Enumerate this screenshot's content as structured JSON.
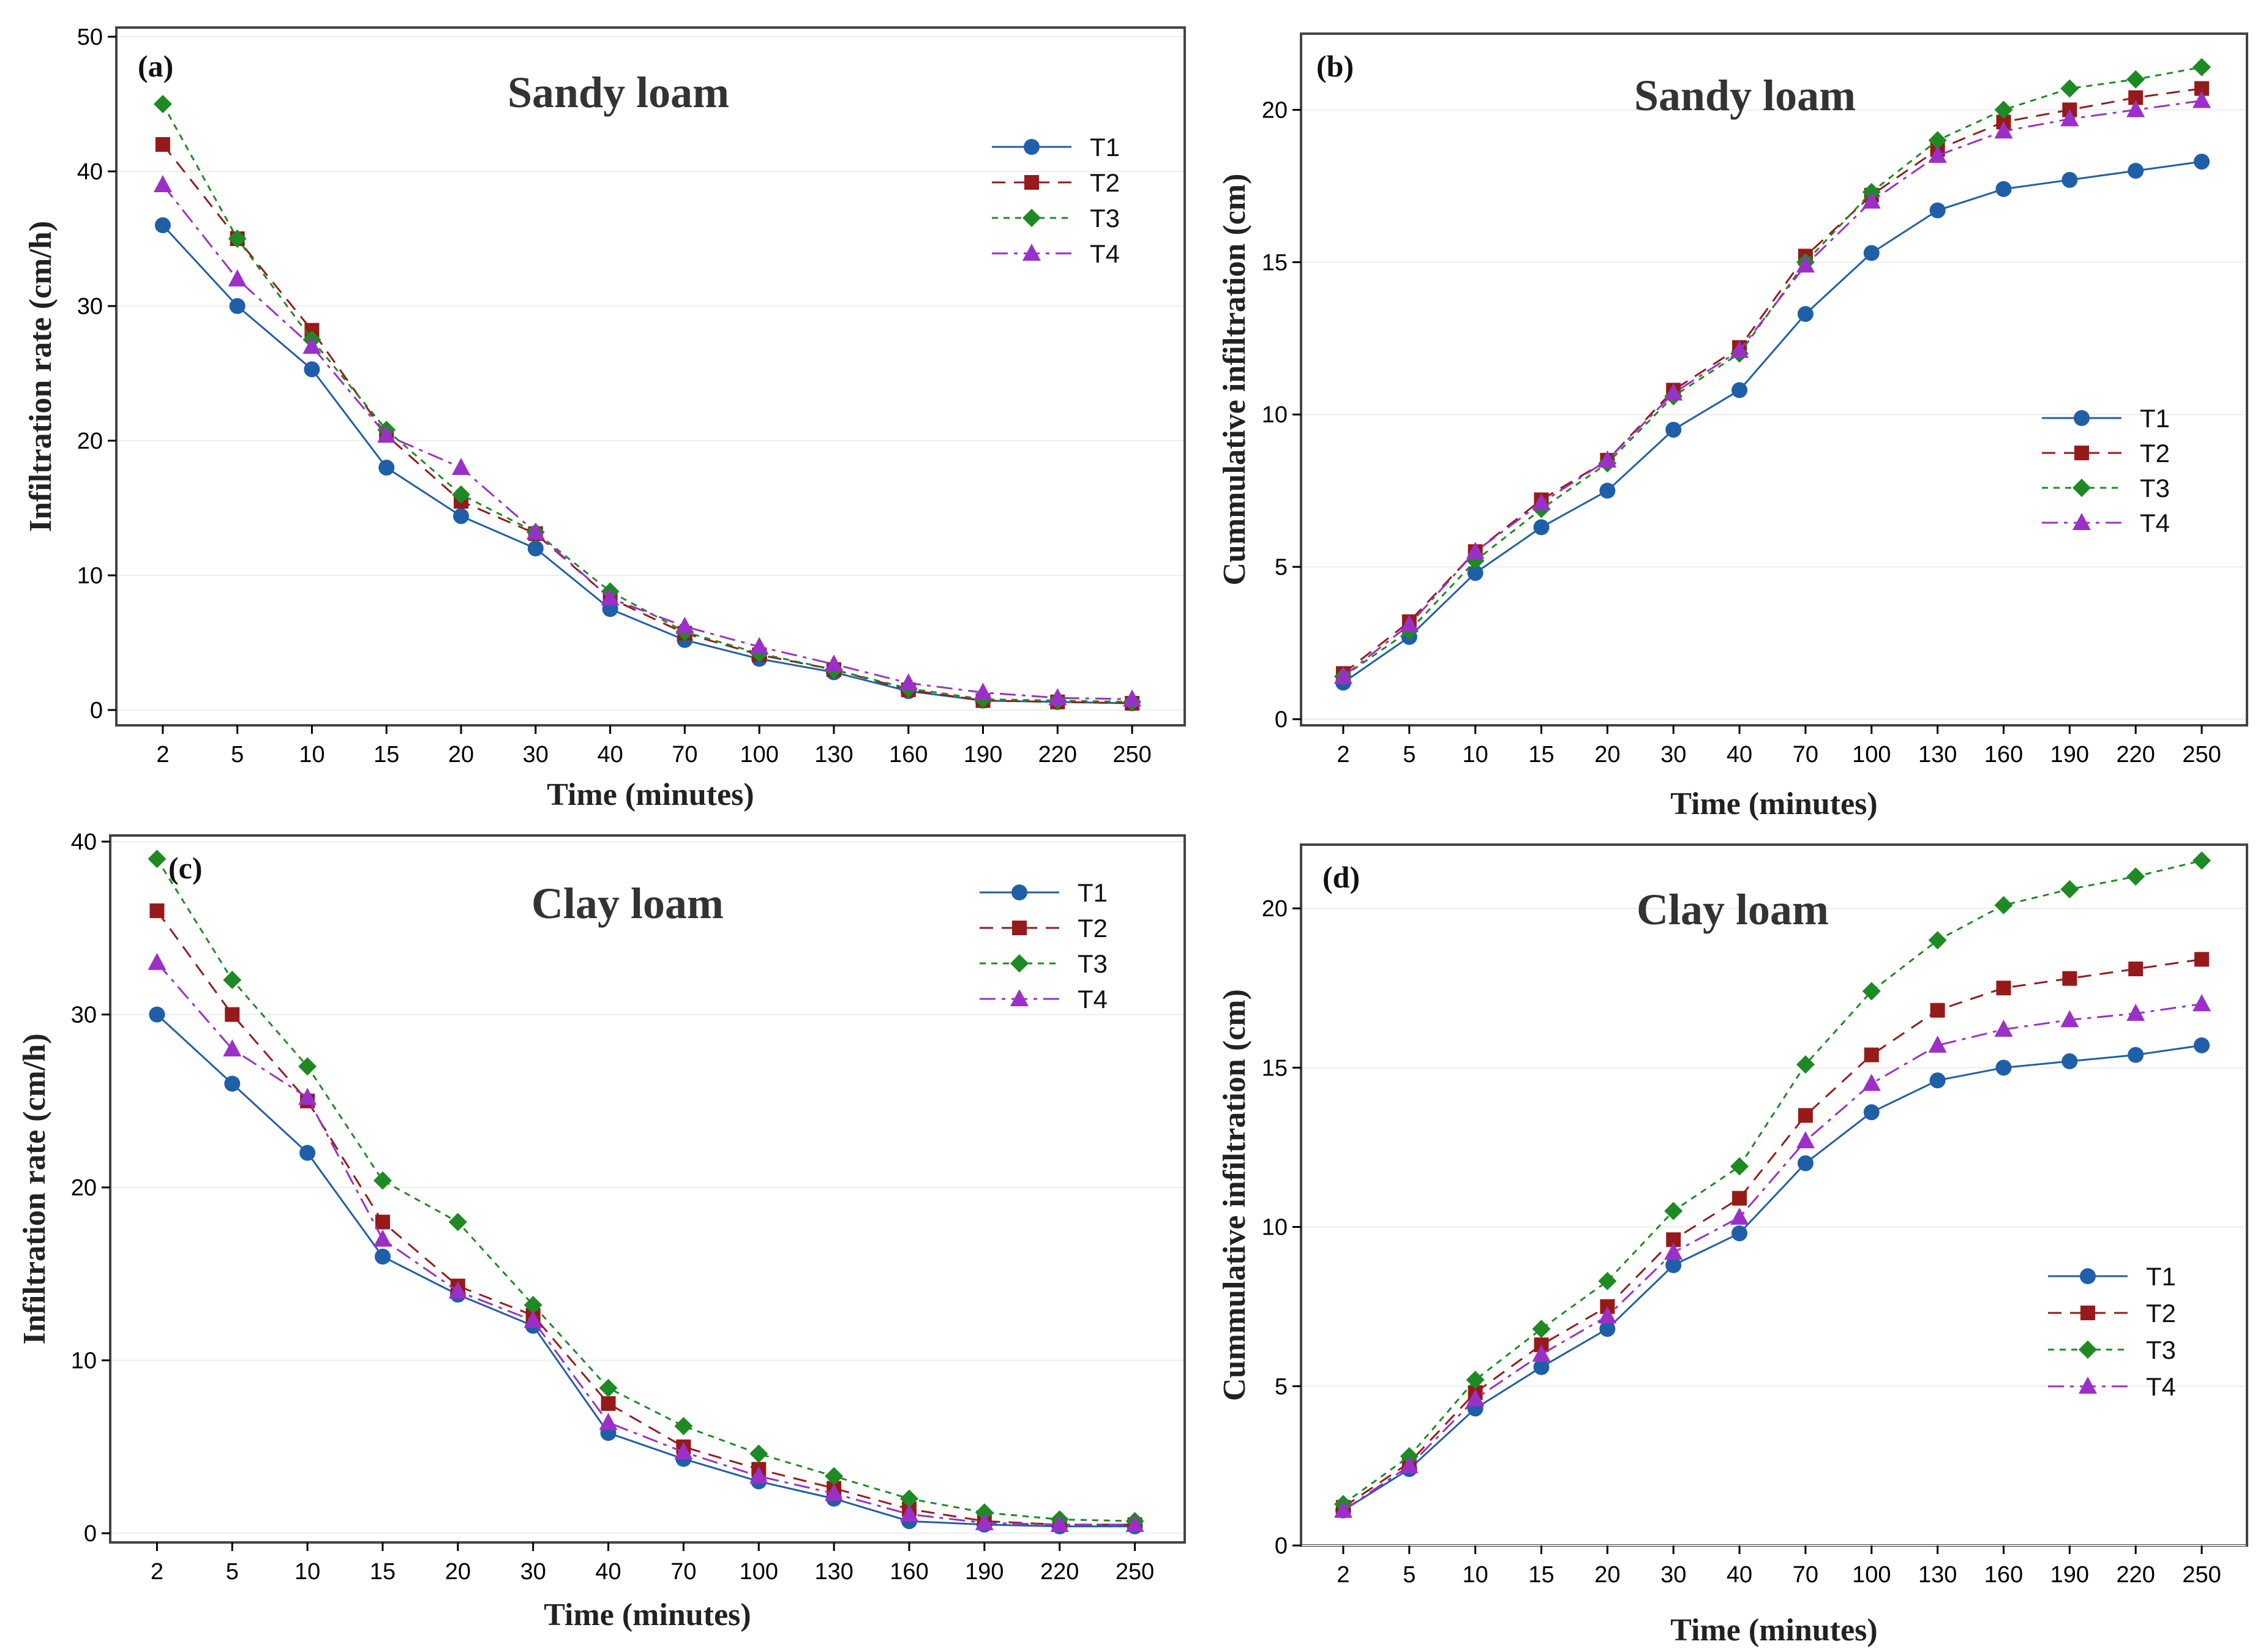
{
  "colors": {
    "T1": "#1f5fa8",
    "T2": "#961a1a",
    "T3": "#1e8a23",
    "T4": "#9b30c8"
  },
  "chart_data": [
    {
      "type": "line",
      "panel": "(a)",
      "title": "Sandy loam",
      "xlabel": "Time (minutes)",
      "ylabel": "Infiltration rate (cm/h)",
      "categories": [
        "2",
        "5",
        "10",
        "15",
        "20",
        "30",
        "40",
        "70",
        "100",
        "130",
        "160",
        "190",
        "220",
        "250"
      ],
      "ylim": [
        0,
        50
      ],
      "yticks": [
        0,
        10,
        20,
        30,
        40,
        50
      ],
      "legend": "top-right",
      "grid": true,
      "series": [
        {
          "name": "T1",
          "values": [
            36,
            30,
            25.3,
            18,
            14.4,
            12,
            7.5,
            5.2,
            3.8,
            2.8,
            1.4,
            0.7,
            0.6,
            0.5
          ]
        },
        {
          "name": "T2",
          "values": [
            42,
            35,
            28.2,
            20.4,
            15.5,
            13.1,
            8.3,
            5.7,
            4.1,
            3.0,
            1.5,
            0.7,
            0.6,
            0.5
          ]
        },
        {
          "name": "T3",
          "values": [
            45,
            35,
            27.5,
            20.8,
            16,
            13.2,
            8.8,
            5.8,
            4.2,
            3.0,
            1.6,
            0.8,
            0.7,
            0.6
          ]
        },
        {
          "name": "T4",
          "values": [
            39,
            32,
            27,
            20.4,
            18,
            13.2,
            8.3,
            6.2,
            4.7,
            3.4,
            2.0,
            1.3,
            0.9,
            0.8
          ]
        }
      ]
    },
    {
      "type": "line",
      "panel": "(b)",
      "title": "Sandy loam",
      "xlabel": "Time (minutes)",
      "ylabel": "Cummulative infiltration (cm)",
      "categories": [
        "2",
        "5",
        "10",
        "15",
        "20",
        "30",
        "40",
        "70",
        "100",
        "130",
        "160",
        "190",
        "220",
        "250"
      ],
      "ylim": [
        0,
        22.5
      ],
      "yticks": [
        0,
        5,
        10,
        15,
        20
      ],
      "legend": "middle-right",
      "grid": true,
      "series": [
        {
          "name": "T1",
          "values": [
            1.2,
            2.7,
            4.8,
            6.3,
            7.5,
            9.5,
            10.8,
            13.3,
            15.3,
            16.7,
            17.4,
            17.7,
            18.0,
            18.3
          ]
        },
        {
          "name": "T2",
          "values": [
            1.5,
            3.2,
            5.5,
            7.2,
            8.5,
            10.8,
            12.2,
            15.2,
            17.2,
            18.7,
            19.6,
            20.0,
            20.4,
            20.7
          ]
        },
        {
          "name": "T3",
          "values": [
            1.4,
            2.9,
            5.2,
            6.9,
            8.4,
            10.6,
            12.0,
            15.0,
            17.3,
            19.0,
            20.0,
            20.7,
            21.0,
            21.4
          ]
        },
        {
          "name": "T4",
          "values": [
            1.4,
            3.1,
            5.5,
            7.1,
            8.5,
            10.7,
            12.1,
            14.9,
            17.0,
            18.5,
            19.3,
            19.7,
            20.0,
            20.3
          ]
        }
      ]
    },
    {
      "type": "line",
      "panel": "(c)",
      "title": "Clay loam",
      "xlabel": "Time (minutes)",
      "ylabel": "Infiltration rate (cm/h)",
      "categories": [
        "2",
        "5",
        "10",
        "15",
        "20",
        "30",
        "40",
        "70",
        "100",
        "130",
        "160",
        "190",
        "220",
        "250"
      ],
      "ylim": [
        0,
        40
      ],
      "yticks": [
        0,
        10,
        20,
        30,
        40
      ],
      "legend": "top-right",
      "grid": true,
      "series": [
        {
          "name": "T1",
          "values": [
            30,
            26,
            22,
            16,
            13.8,
            12,
            5.8,
            4.3,
            3.0,
            2.0,
            0.7,
            0.5,
            0.4,
            0.4
          ]
        },
        {
          "name": "T2",
          "values": [
            36,
            30,
            25,
            18,
            14.3,
            12.6,
            7.5,
            5.0,
            3.7,
            2.6,
            1.4,
            0.7,
            0.5,
            0.5
          ]
        },
        {
          "name": "T3",
          "values": [
            39,
            32,
            27,
            20.4,
            18,
            13.2,
            8.4,
            6.2,
            4.6,
            3.3,
            2.0,
            1.2,
            0.8,
            0.7
          ]
        },
        {
          "name": "T4",
          "values": [
            33,
            28,
            25.2,
            17,
            14,
            12.3,
            6.4,
            4.7,
            3.3,
            2.3,
            1.1,
            0.6,
            0.5,
            0.5
          ]
        }
      ]
    },
    {
      "type": "line",
      "panel": "(d)",
      "title": "Clay loam",
      "xlabel": "Time (minutes)",
      "ylabel": "Cummulative infiltration (cm)",
      "categories": [
        "2",
        "5",
        "10",
        "15",
        "20",
        "30",
        "40",
        "70",
        "100",
        "130",
        "160",
        "190",
        "220",
        "250"
      ],
      "ylim": [
        0,
        22
      ],
      "yticks": [
        0,
        5,
        10,
        15,
        20
      ],
      "legend": "middle-right",
      "grid": true,
      "series": [
        {
          "name": "T1",
          "values": [
            1.1,
            2.4,
            4.3,
            5.6,
            6.8,
            8.8,
            9.8,
            12.0,
            13.6,
            14.6,
            15.0,
            15.2,
            15.4,
            15.7
          ]
        },
        {
          "name": "T2",
          "values": [
            1.2,
            2.6,
            4.8,
            6.3,
            7.5,
            9.6,
            10.9,
            13.5,
            15.4,
            16.8,
            17.5,
            17.8,
            18.1,
            18.4
          ]
        },
        {
          "name": "T3",
          "values": [
            1.3,
            2.8,
            5.2,
            6.8,
            8.3,
            10.5,
            11.9,
            15.1,
            17.4,
            19.0,
            20.1,
            20.6,
            21.0,
            21.5
          ]
        },
        {
          "name": "T4",
          "values": [
            1.1,
            2.5,
            4.6,
            6.0,
            7.2,
            9.2,
            10.3,
            12.7,
            14.5,
            15.7,
            16.2,
            16.5,
            16.7,
            17.0
          ]
        }
      ]
    }
  ]
}
